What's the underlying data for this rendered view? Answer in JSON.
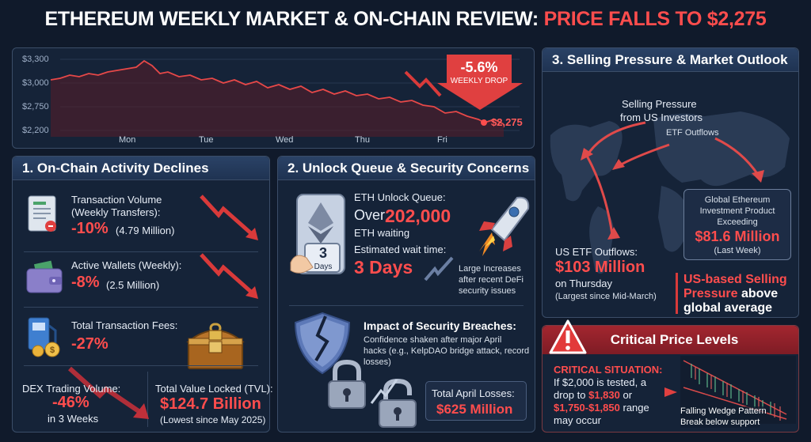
{
  "header": {
    "title_main": "ETHEREUM WEEKLY MARKET & ON-CHAIN REVIEW:",
    "title_highlight": "PRICE FALLS TO $2,275"
  },
  "price_chart": {
    "y_ticks": [
      "$3,300",
      "$3,000",
      "$2,750",
      "$2,200"
    ],
    "x_ticks": [
      "Mon",
      "Tue",
      "Wed",
      "Thu",
      "Fri"
    ],
    "change_value": "-5.6%",
    "change_label": "WEEKLY DROP",
    "end_price": "$2,275"
  },
  "onchain": {
    "heading": "1. On-Chain Activity Declines",
    "tx_volume": {
      "label": "Transaction Volume",
      "sublabel": "(Weekly Transfers):",
      "value": "-10%",
      "detail": "(4.79 Million)"
    },
    "active_wallets": {
      "label": "Active Wallets (Weekly):",
      "value": "-8%",
      "detail": "(2.5 Million)"
    },
    "fees": {
      "label": "Total Transaction Fees:",
      "value": "-27%"
    },
    "dex": {
      "label": "DEX Trading Volume:",
      "value": "-46%",
      "detail": "in 3 Weeks"
    },
    "tvl": {
      "label": "Total Value Locked (TVL):",
      "value": "$124.7 Billion",
      "detail": "(Lowest since May 2025)"
    }
  },
  "unlock": {
    "heading": "2. Unlock Queue & Security Concerns",
    "queue_label": "ETH Unlock Queue:",
    "queue_prefix": "Over",
    "queue_value": "202,000",
    "queue_suffix": "ETH waiting",
    "wait_label": "Estimated wait time:",
    "wait_value": "3 Days",
    "calendar_number": "3",
    "calendar_label": "Days",
    "increase_note_1": "Large Increases",
    "increase_note_2": "after recent DeFi",
    "increase_note_3": "security issues",
    "breach_title": "Impact of Security Breaches:",
    "breach_line_1": "Confidence shaken after major April",
    "breach_line_2": "hacks (e.g., KelpDAO bridge attack, record",
    "breach_line_3": "losses)",
    "losses_label": "Total April Losses:",
    "losses_value": "$625 Million"
  },
  "selling": {
    "heading": "3. Selling Pressure & Market Outlook",
    "pressure_line_1": "Selling Pressure",
    "pressure_line_2": "from US Investors",
    "etf_outflows": "ETF Outflows",
    "us_etf_label": "US ETF Outflows:",
    "us_etf_value": "$103 Million",
    "us_etf_when": "on Thursday",
    "us_etf_note": "(Largest since Mid-March)",
    "global_line_1": "Global Ethereum",
    "global_line_2": "Investment Product",
    "global_line_3": "Exceeding",
    "global_value": "$81.6 Million",
    "global_period": "(Last Week)",
    "us_based_1": "US-based Selling",
    "us_based_2a": "Pressure",
    "us_based_2b": "above",
    "us_based_3": "global average"
  },
  "critical": {
    "heading": "Critical Price Levels",
    "situation": "CRITICAL SITUATION:",
    "line_1": "If $2,000 is tested, a",
    "line_2_a": "drop to",
    "line_2_b": "$1,830",
    "line_2_c": "or",
    "line_3_a": "$1,750-$1,850",
    "line_3_b": "range",
    "line_4": "may occur",
    "pattern_1": "Falling Wedge Pattern",
    "pattern_2": "Break below support"
  },
  "colors": {
    "accent_red": "#ff4d4d",
    "background": "#101a2b",
    "panel": "#152338"
  }
}
